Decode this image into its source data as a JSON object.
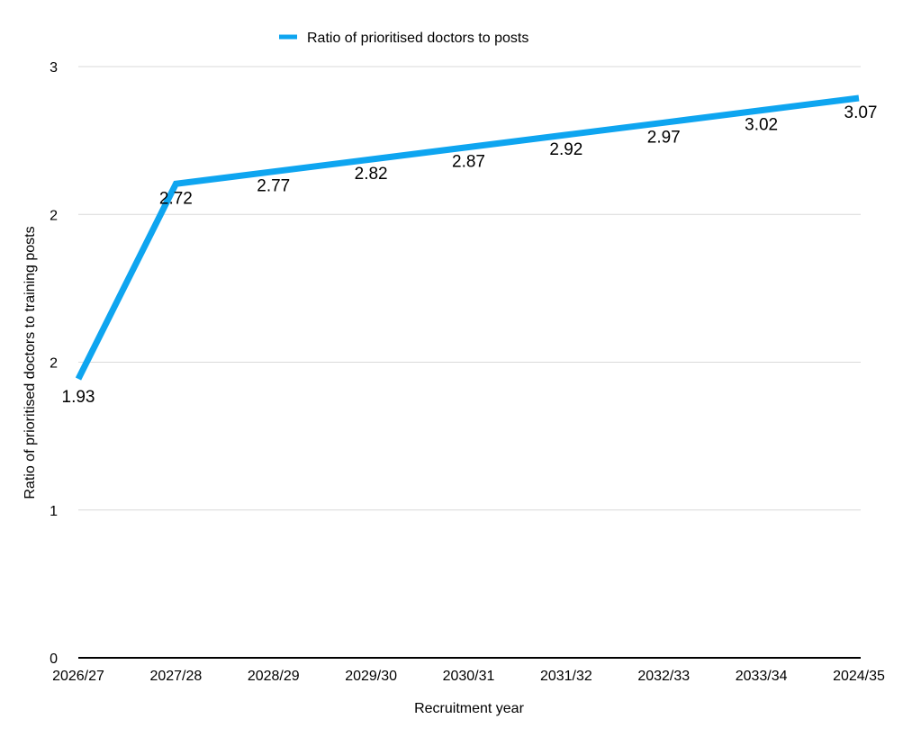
{
  "chart_data": {
    "type": "line",
    "legend_position": "top-center",
    "legend_label": "Ratio of prioritised doctors to posts",
    "xlabel": "Recruitment year",
    "ylabel": "Ratio of prioritised doctors to training posts",
    "categories": [
      "2026/27",
      "2027/28",
      "2028/29",
      "2029/30",
      "2030/31",
      "2031/32",
      "2032/33",
      "2033/34",
      "2024/35"
    ],
    "series": [
      {
        "name": "Ratio of prioritised doctors to posts",
        "color": "#0ea5f0",
        "values": [
          1.93,
          2.72,
          2.77,
          2.82,
          2.87,
          2.92,
          2.97,
          3.02,
          3.07
        ],
        "data_labels": [
          "1.93",
          "2.72",
          "2.77",
          "2.82",
          "2.87",
          "2.92",
          "2.97",
          "3.02",
          "3.07"
        ]
      }
    ],
    "yticks": [
      {
        "value": 0,
        "label": "0"
      },
      {
        "value": 0.75,
        "label": "1"
      },
      {
        "value": 1.5,
        "label": "2"
      },
      {
        "value": 2.25,
        "label": "2"
      },
      {
        "value": 3.0,
        "label": "3"
      }
    ],
    "ylim": [
      0,
      3
    ],
    "grid": true,
    "gridline_color": "#d9d9d9",
    "axis_color": "#000000"
  }
}
